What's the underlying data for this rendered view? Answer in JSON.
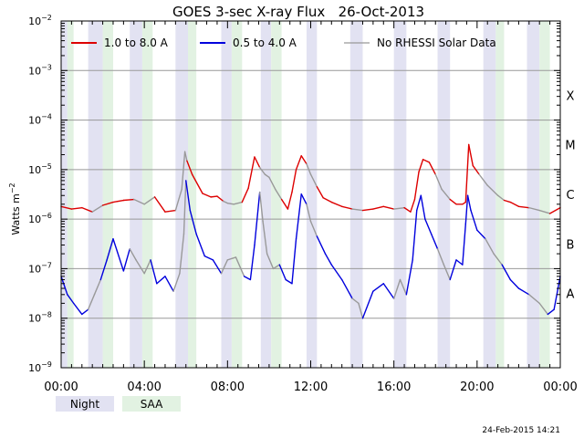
{
  "chart_data": {
    "type": "line",
    "title": "GOES 3-sec X-ray Flux   26-Oct-2013",
    "ylabel": "Watts m",
    "ylabel_exp": "−2",
    "ylim": [
      1e-09,
      0.01
    ],
    "yscale": "log",
    "xlim": [
      "00:00",
      "24:00"
    ],
    "x_tick_labels": [
      "00:00",
      "04:00",
      "08:00",
      "12:00",
      "16:00",
      "20:00",
      "00:00"
    ],
    "y_ticks": [
      {
        "value": 1e-09,
        "base": "10",
        "exp": "−9"
      },
      {
        "value": 1e-08,
        "base": "10",
        "exp": "−8"
      },
      {
        "value": 1e-07,
        "base": "10",
        "exp": "−7"
      },
      {
        "value": 1e-06,
        "base": "10",
        "exp": "−6"
      },
      {
        "value": 1e-05,
        "base": "10",
        "exp": "−5"
      },
      {
        "value": 0.0001,
        "base": "10",
        "exp": "−4"
      },
      {
        "value": 0.001,
        "base": "10",
        "exp": "−3"
      },
      {
        "value": 0.01,
        "base": "10",
        "exp": "−2"
      }
    ],
    "flare_classes": [
      {
        "label": "A",
        "value": 1e-08
      },
      {
        "label": "B",
        "value": 1e-07
      },
      {
        "label": "C",
        "value": 1e-06
      },
      {
        "label": "M",
        "value": 1e-05
      },
      {
        "label": "X",
        "value": 0.0001
      }
    ],
    "grid": "horizontal at each decade",
    "legend_position": "top",
    "legend": [
      {
        "label": "1.0 to 8.0 A",
        "color": "#dd0000"
      },
      {
        "label": "0.5 to 4.0 A",
        "color": "#0000dd"
      },
      {
        "label": "No RHESSI Solar Data",
        "color": "#999999"
      }
    ],
    "band_legend": [
      {
        "label": "Night",
        "color": "#e2e2f2"
      },
      {
        "label": "SAA",
        "color": "#e2f2e2"
      }
    ],
    "timestamp": "24-Feb-2015 14:21",
    "night_intervals": [
      [
        0.0,
        0.3
      ],
      [
        1.3,
        2.0
      ],
      [
        3.3,
        3.9
      ],
      [
        5.5,
        6.1
      ],
      [
        7.7,
        8.2
      ],
      [
        9.6,
        10.1
      ],
      [
        11.8,
        12.3
      ],
      [
        13.9,
        14.5
      ],
      [
        16.0,
        16.6
      ],
      [
        18.1,
        18.7
      ],
      [
        20.3,
        20.9
      ],
      [
        22.4,
        23.0
      ]
    ],
    "saa_intervals": [
      [
        0.3,
        0.6
      ],
      [
        2.0,
        2.5
      ],
      [
        3.9,
        4.4
      ],
      [
        6.1,
        6.5
      ],
      [
        8.2,
        8.7
      ],
      [
        10.1,
        10.6
      ],
      [
        20.9,
        21.3
      ],
      [
        23.0,
        23.5
      ]
    ],
    "series": [
      {
        "name": "1.0 to 8.0 A",
        "color": "#dd0000",
        "gap_color": "#999999",
        "x": [
          0.0,
          0.5,
          1.0,
          1.5,
          2.0,
          2.5,
          3.0,
          3.5,
          4.0,
          4.5,
          5.0,
          5.5,
          5.8,
          5.95,
          6.05,
          6.3,
          6.8,
          7.2,
          7.5,
          7.8,
          8.0,
          8.3,
          8.7,
          9.0,
          9.3,
          9.55,
          9.8,
          10.0,
          10.3,
          10.6,
          10.9,
          11.1,
          11.3,
          11.55,
          11.8,
          12.0,
          12.3,
          12.6,
          13.0,
          13.5,
          14.0,
          14.5,
          15.0,
          15.5,
          16.0,
          16.5,
          16.8,
          17.0,
          17.2,
          17.4,
          17.7,
          18.0,
          18.3,
          18.7,
          19.0,
          19.3,
          19.45,
          19.6,
          19.8,
          20.1,
          20.5,
          21.0,
          21.3,
          21.6,
          22.0,
          22.5,
          23.0,
          23.5,
          24.0
        ],
        "y": [
          1.8e-06,
          1.6e-06,
          1.7e-06,
          1.4e-06,
          1.9e-06,
          2.2e-06,
          2.4e-06,
          2.5e-06,
          2e-06,
          2.8e-06,
          1.4e-06,
          1.5e-06,
          4e-06,
          2.3e-05,
          1.5e-05,
          8e-06,
          3.3e-06,
          2.8e-06,
          2.9e-06,
          2.3e-06,
          2.1e-06,
          2e-06,
          2.2e-06,
          4.2e-06,
          1.8e-05,
          1.1e-05,
          8e-06,
          7e-06,
          4e-06,
          2.5e-06,
          1.6e-06,
          3.5e-06,
          1e-05,
          1.9e-05,
          1.3e-05,
          8e-06,
          4.5e-06,
          2.7e-06,
          2.2e-06,
          1.8e-06,
          1.6e-06,
          1.5e-06,
          1.6e-06,
          1.8e-06,
          1.6e-06,
          1.7e-06,
          1.4e-06,
          2.5e-06,
          9e-06,
          1.6e-05,
          1.4e-05,
          8e-06,
          4e-06,
          2.5e-06,
          2e-06,
          2e-06,
          2.2e-06,
          3.2e-05,
          1.2e-05,
          8e-06,
          4.8e-06,
          3e-06,
          2.4e-06,
          2.2e-06,
          1.8e-06,
          1.7e-06,
          1.5e-06,
          1.3e-06,
          1.7e-06
        ]
      },
      {
        "name": "0.5 to 4.0 A",
        "color": "#0000dd",
        "gap_color": "#999999",
        "x": [
          0.0,
          0.3,
          0.6,
          1.0,
          1.3,
          1.6,
          1.9,
          2.2,
          2.5,
          3.0,
          3.3,
          3.6,
          4.0,
          4.3,
          4.6,
          5.0,
          5.4,
          5.7,
          5.9,
          6.0,
          6.2,
          6.5,
          6.9,
          7.3,
          7.7,
          8.0,
          8.4,
          8.8,
          9.1,
          9.3,
          9.55,
          9.7,
          9.9,
          10.2,
          10.5,
          10.8,
          11.1,
          11.3,
          11.55,
          11.8,
          12.0,
          12.3,
          12.7,
          13.0,
          13.5,
          14.0,
          14.3,
          14.5,
          15.0,
          15.5,
          16.0,
          16.3,
          16.6,
          16.9,
          17.1,
          17.3,
          17.5,
          17.8,
          18.1,
          18.4,
          18.7,
          19.0,
          19.3,
          19.45,
          19.55,
          19.7,
          20.0,
          20.4,
          20.8,
          21.2,
          21.6,
          22.0,
          22.5,
          23.0,
          23.4,
          23.7,
          24.0
        ],
        "y": [
          7e-08,
          3e-08,
          2e-08,
          1.2e-08,
          1.5e-08,
          3e-08,
          6e-08,
          1.5e-07,
          4e-07,
          9e-08,
          2.5e-07,
          1.5e-07,
          8e-08,
          1.5e-07,
          5e-08,
          7e-08,
          3.5e-08,
          8e-08,
          5e-07,
          6e-06,
          1.5e-06,
          5e-07,
          1.8e-07,
          1.5e-07,
          8e-08,
          1.5e-07,
          1.7e-07,
          7e-08,
          6e-08,
          3e-07,
          3.5e-06,
          9e-07,
          2e-07,
          1e-07,
          1.2e-07,
          6e-08,
          5e-08,
          4e-07,
          3.2e-06,
          2e-06,
          9e-07,
          4.5e-07,
          2e-07,
          1.2e-07,
          6e-08,
          2.5e-08,
          2e-08,
          1e-08,
          3.5e-08,
          5e-08,
          2.5e-08,
          6e-08,
          3e-08,
          1.5e-07,
          1.5e-06,
          3e-06,
          1e-06,
          5e-07,
          2.5e-07,
          1.2e-07,
          6e-08,
          1.5e-07,
          1.2e-07,
          8e-07,
          3e-06,
          1.5e-06,
          6e-07,
          4e-07,
          2e-07,
          1.2e-07,
          6e-08,
          4e-08,
          3e-08,
          2e-08,
          1.2e-08,
          1.5e-08,
          7e-08
        ]
      }
    ],
    "gap_intervals": [
      [
        1.3,
        2.0
      ],
      [
        3.3,
        4.4
      ],
      [
        5.5,
        6.1
      ],
      [
        7.7,
        8.7
      ],
      [
        9.6,
        10.6
      ],
      [
        11.8,
        12.3
      ],
      [
        13.9,
        14.5
      ],
      [
        16.0,
        16.6
      ],
      [
        18.1,
        18.7
      ],
      [
        20.3,
        21.3
      ],
      [
        22.4,
        23.5
      ]
    ]
  }
}
